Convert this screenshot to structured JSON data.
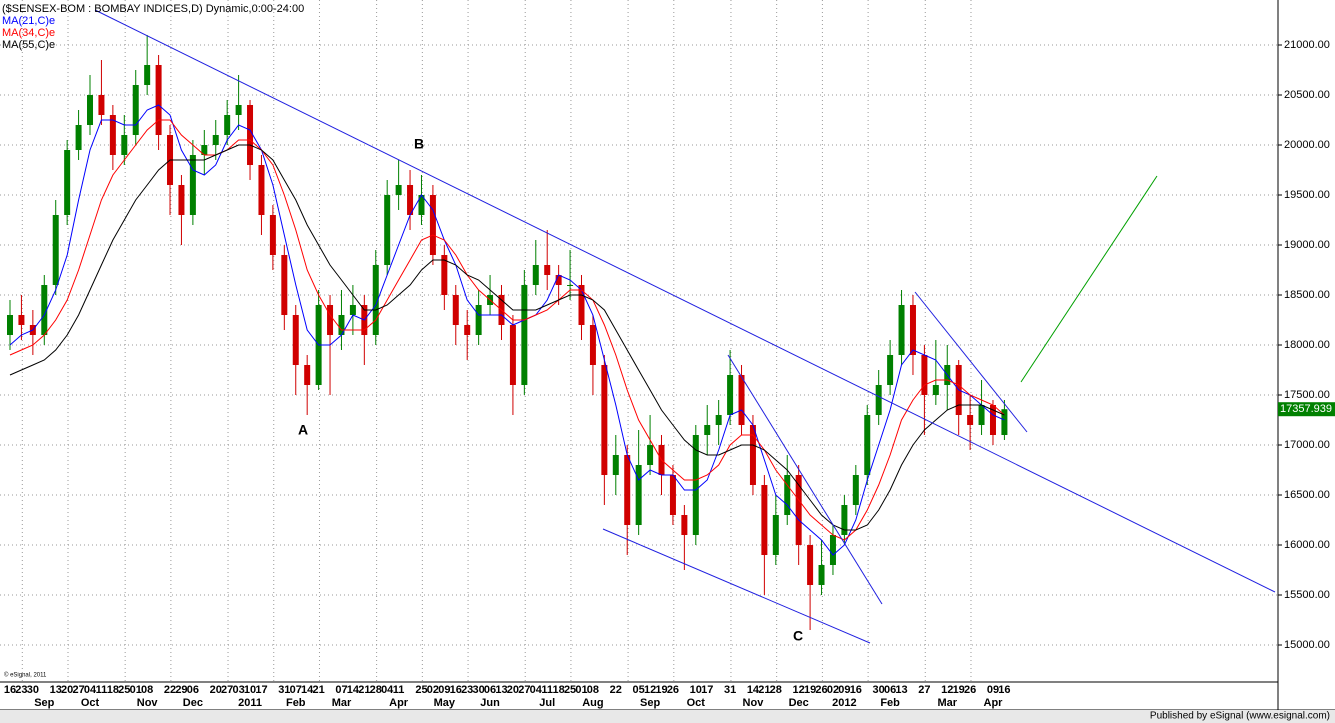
{
  "chart_data": {
    "type": "candlestick",
    "title": "($SENSEX-BOM : BOMBAY INDICES,D) Dynamic,0:00-24:00",
    "copyright": "© eSignal, 2011",
    "footer": "Published by eSignal (www.esignal.com)",
    "annotations": [
      "A",
      "B",
      "C"
    ],
    "up_color": "#008000",
    "down_color": "#d00000",
    "categories": [
      "16",
      "23",
      "30",
      null,
      "13",
      "20",
      "27",
      "04",
      "11",
      "18",
      "25",
      "01",
      "08",
      null,
      "22",
      "29",
      "06",
      null,
      "20",
      "27",
      "03",
      "10",
      "17",
      null,
      "31",
      "07",
      "14",
      "21",
      null,
      "07",
      "14",
      "21",
      "28",
      "04",
      "11",
      null,
      "25",
      "02",
      "09",
      "16",
      "23",
      "30",
      "06",
      "13",
      "20",
      "27",
      "04",
      "11",
      "18",
      "25",
      "01",
      "08",
      null,
      "22",
      null,
      "05",
      "12",
      "19",
      "26",
      null,
      "10",
      "17",
      null,
      "31",
      null,
      "14",
      "21",
      "28",
      null,
      "12",
      "19",
      "26",
      "02",
      "09",
      "16",
      null,
      "30",
      "06",
      "13",
      null,
      "27",
      null,
      "12",
      "19",
      "26",
      null,
      "09",
      "16"
    ],
    "month_labels": [
      null,
      null,
      null,
      "Sep",
      null,
      null,
      null,
      "Oct",
      null,
      null,
      null,
      null,
      "Nov",
      null,
      null,
      null,
      "Dec",
      null,
      null,
      null,
      null,
      "2011",
      null,
      null,
      null,
      "Feb",
      null,
      null,
      null,
      "Mar",
      null,
      null,
      null,
      null,
      "Apr",
      null,
      null,
      null,
      "May",
      null,
      null,
      null,
      "Jun",
      null,
      null,
      null,
      null,
      "Jul",
      null,
      null,
      null,
      "Aug",
      null,
      null,
      null,
      null,
      "Sep",
      null,
      null,
      null,
      "Oct",
      null,
      null,
      null,
      null,
      "Nov",
      null,
      null,
      null,
      "Dec",
      null,
      null,
      null,
      "2012",
      null,
      null,
      null,
      "Feb",
      null,
      null,
      null,
      null,
      "Mar",
      null,
      null,
      null,
      "Apr",
      null
    ],
    "open": [
      18100,
      18300,
      18200,
      18100,
      18600,
      19300,
      19950,
      20200,
      20500,
      20300,
      19900,
      20100,
      20600,
      20800,
      20100,
      19600,
      19300,
      19900,
      20000,
      20100,
      20300,
      20400,
      19800,
      19300,
      18900,
      18300,
      17800,
      17600,
      18400,
      18100,
      18300,
      18400,
      18100,
      18800,
      19500,
      19600,
      19300,
      19500,
      18900,
      18500,
      18200,
      18100,
      18400,
      18500,
      18200,
      17600,
      18600,
      18800,
      18700,
      18600,
      18600,
      18200,
      17800,
      16700,
      16900,
      16200,
      16800,
      17000,
      16700,
      16300,
      16100,
      17100,
      17200,
      17300,
      17700,
      17200,
      16600,
      15900,
      16300,
      16700,
      16000,
      15600,
      15800,
      16100,
      16400,
      16700,
      17300,
      17600,
      17900,
      18400,
      17900,
      17500,
      17600,
      17800,
      17300,
      17200,
      17400,
      17100
    ],
    "high": [
      18450,
      18500,
      18350,
      18700,
      19450,
      20050,
      20350,
      20700,
      20850,
      20400,
      20300,
      20750,
      21100,
      20900,
      20200,
      19700,
      20050,
      20150,
      20250,
      20450,
      20700,
      20450,
      19900,
      19400,
      19000,
      18400,
      17900,
      18550,
      18500,
      18550,
      18600,
      18500,
      18950,
      19650,
      19850,
      19750,
      19700,
      19600,
      19000,
      18600,
      18350,
      18550,
      18700,
      18600,
      18300,
      18750,
      19050,
      19150,
      18800,
      18950,
      18700,
      18300,
      17900,
      17100,
      17000,
      17150,
      17300,
      17100,
      16800,
      16400,
      17200,
      17400,
      17450,
      17950,
      17800,
      17300,
      16700,
      16500,
      16900,
      16800,
      16100,
      16050,
      16200,
      16500,
      16800,
      17400,
      17750,
      18050,
      18550,
      18500,
      18000,
      18050,
      18000,
      17850,
      17500,
      17650,
      17450,
      17450
    ],
    "low": [
      17950,
      18050,
      17900,
      18000,
      18500,
      19200,
      19850,
      20100,
      20200,
      19750,
      19800,
      20000,
      20500,
      19950,
      19300,
      19000,
      19200,
      19700,
      19850,
      20000,
      20150,
      19650,
      19100,
      18750,
      18150,
      17500,
      17300,
      17550,
      17500,
      17950,
      18100,
      17800,
      18000,
      18700,
      19350,
      19150,
      19200,
      18800,
      18350,
      18000,
      17850,
      18000,
      18300,
      18050,
      17300,
      17500,
      18500,
      18550,
      18400,
      18450,
      18050,
      17500,
      16400,
      16500,
      15900,
      16100,
      16700,
      16500,
      16200,
      15750,
      16000,
      16900,
      17000,
      17200,
      17100,
      16500,
      15500,
      15800,
      16200,
      15800,
      15150,
      15500,
      15700,
      16000,
      16300,
      16600,
      17200,
      17500,
      17800,
      17700,
      17100,
      17400,
      17350,
      17100,
      16950,
      17100,
      17000,
      17050
    ],
    "close": [
      18300,
      18200,
      18100,
      18600,
      19300,
      19950,
      20200,
      20500,
      20300,
      19900,
      20100,
      20600,
      20800,
      20100,
      19600,
      19300,
      19900,
      20000,
      20100,
      20300,
      20400,
      19800,
      19300,
      18900,
      18300,
      17800,
      17600,
      18400,
      18100,
      18300,
      18400,
      18100,
      18800,
      19500,
      19600,
      19300,
      19500,
      18900,
      18500,
      18200,
      18100,
      18400,
      18500,
      18200,
      17600,
      18600,
      18800,
      18700,
      18600,
      18600,
      18200,
      17800,
      16700,
      16900,
      16200,
      16800,
      17000,
      16700,
      16300,
      16100,
      17100,
      17200,
      17300,
      17700,
      17200,
      16600,
      15900,
      16300,
      16700,
      16000,
      15600,
      15800,
      16100,
      16400,
      16700,
      17300,
      17600,
      17900,
      18400,
      17900,
      17500,
      17600,
      17800,
      17300,
      17200,
      17400,
      17100,
      17357.939
    ],
    "series": [
      {
        "name": "MA(21,C)e",
        "color": "#0000ff",
        "values": [
          18000,
          18100,
          18150,
          18300,
          18550,
          18900,
          19450,
          19950,
          20250,
          20250,
          20200,
          20200,
          20350,
          20400,
          20300,
          19950,
          19750,
          19700,
          19800,
          20050,
          20200,
          20150,
          19950,
          19600,
          19100,
          18600,
          18150,
          18000,
          18000,
          18100,
          18300,
          18250,
          18400,
          18700,
          19000,
          19300,
          19500,
          19350,
          19050,
          18800,
          18450,
          18300,
          18300,
          18300,
          18200,
          18250,
          18300,
          18450,
          18700,
          18650,
          18550,
          18300,
          17850,
          17400,
          16900,
          16650,
          16750,
          16700,
          16700,
          16550,
          16550,
          16650,
          16950,
          17300,
          17350,
          17200,
          16850,
          16500,
          16400,
          16250,
          16150,
          16050,
          15900,
          16000,
          16250,
          16650,
          17000,
          17350,
          17800,
          17950,
          17900,
          17850,
          17700,
          17550,
          17500,
          17400,
          17300,
          17250
        ]
      },
      {
        "name": "MA(34,C)e",
        "color": "#ff0000",
        "values": [
          17900,
          17950,
          18000,
          18100,
          18250,
          18450,
          18750,
          19100,
          19450,
          19700,
          19850,
          20000,
          20150,
          20250,
          20250,
          20100,
          20000,
          19900,
          19900,
          19950,
          20050,
          20050,
          19950,
          19800,
          19500,
          19150,
          18750,
          18500,
          18300,
          18150,
          18150,
          18150,
          18250,
          18450,
          18650,
          18850,
          19050,
          19100,
          19050,
          18900,
          18700,
          18550,
          18450,
          18350,
          18250,
          18250,
          18300,
          18350,
          18450,
          18550,
          18550,
          18450,
          18200,
          17900,
          17550,
          17250,
          17050,
          16850,
          16750,
          16650,
          16650,
          16700,
          16800,
          17000,
          17100,
          17100,
          16950,
          16750,
          16600,
          16450,
          16300,
          16200,
          16100,
          16050,
          16150,
          16350,
          16600,
          16900,
          17250,
          17450,
          17600,
          17650,
          17650,
          17600,
          17500,
          17450,
          17400,
          17300
        ]
      },
      {
        "name": "MA(55,C)e",
        "color": "#000000",
        "values": [
          17700,
          17750,
          17800,
          17850,
          17950,
          18100,
          18300,
          18550,
          18800,
          19050,
          19250,
          19450,
          19600,
          19750,
          19850,
          19850,
          19850,
          19850,
          19900,
          19950,
          20000,
          20000,
          19950,
          19850,
          19650,
          19450,
          19200,
          19000,
          18800,
          18650,
          18500,
          18350,
          18350,
          18400,
          18500,
          18600,
          18750,
          18850,
          18850,
          18800,
          18700,
          18650,
          18550,
          18450,
          18350,
          18350,
          18350,
          18400,
          18450,
          18500,
          18500,
          18450,
          18350,
          18150,
          17950,
          17750,
          17550,
          17350,
          17200,
          17050,
          16950,
          16900,
          16900,
          16950,
          17000,
          17000,
          16950,
          16850,
          16750,
          16600,
          16450,
          16300,
          16200,
          16150,
          16150,
          16200,
          16350,
          16550,
          16800,
          17000,
          17150,
          17250,
          17350,
          17400,
          17400,
          17400,
          17350,
          17300
        ]
      }
    ],
    "ylim": [
      14630,
      21450
    ],
    "yticks": [
      {
        "value": 15000,
        "label": "15000.00"
      },
      {
        "value": 15500,
        "label": "15500.00"
      },
      {
        "value": 16000,
        "label": "16000.00"
      },
      {
        "value": 16500,
        "label": "16500.00"
      },
      {
        "value": 17000,
        "label": "17000.00"
      },
      {
        "value": 17500,
        "label": "17500.00"
      },
      {
        "value": 18000,
        "label": "18000.00"
      },
      {
        "value": 18500,
        "label": "18500.00"
      },
      {
        "value": 19000,
        "label": "19000.00"
      },
      {
        "value": 19500,
        "label": "19500.00"
      },
      {
        "value": 20000,
        "label": "20000.00"
      },
      {
        "value": 20500,
        "label": "20500.00"
      },
      {
        "value": 21000,
        "label": "21000.00"
      }
    ],
    "grid": true
  }
}
